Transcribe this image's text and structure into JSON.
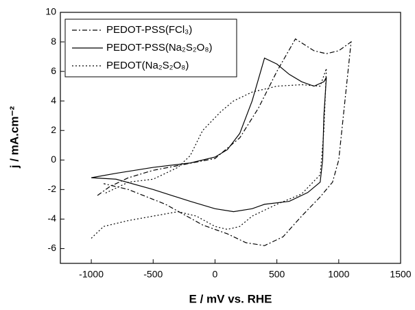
{
  "chart_data": {
    "type": "line",
    "x_label": "E / mV vs. RHE",
    "y_label": "j / mA.cm⁻²",
    "xlim": [
      -1250,
      1500
    ],
    "xticks": [
      -1000,
      -500,
      0,
      500,
      1000,
      1500
    ],
    "ylim": [
      -7,
      10
    ],
    "yticks": [
      -6,
      -4,
      -2,
      0,
      2,
      4,
      6,
      8,
      10
    ],
    "legend": "upper left",
    "series": [
      {
        "name": "PEDOT-PSS(FCl₃)",
        "color": "#000000",
        "dash": "dashdot",
        "x": [
          -950,
          -850,
          -700,
          -500,
          -250,
          0,
          200,
          350,
          500,
          650,
          800,
          900,
          1000,
          1100,
          1050,
          1000,
          950,
          850,
          700,
          550,
          400,
          250,
          100,
          -100,
          -400,
          -700,
          -900
        ],
        "values": [
          -2.4,
          -1.8,
          -1.2,
          -0.7,
          -0.3,
          0.1,
          1.5,
          3.5,
          6.0,
          8.2,
          7.4,
          7.2,
          7.4,
          8.0,
          4.0,
          0.0,
          -1.5,
          -2.5,
          -3.8,
          -5.2,
          -5.8,
          -5.6,
          -5.0,
          -4.4,
          -3.0,
          -2.0,
          -1.6
        ]
      },
      {
        "name": "PEDOT-PSS(Na₂S₂O₈)",
        "color": "#000000",
        "dash": "solid",
        "x": [
          -1000,
          -800,
          -500,
          -200,
          0,
          100,
          200,
          300,
          400,
          500,
          600,
          700,
          800,
          880,
          900,
          880,
          870,
          850,
          750,
          600,
          400,
          300,
          150,
          0,
          -200,
          -500,
          -800,
          -1000
        ],
        "values": [
          -1.2,
          -0.9,
          -0.5,
          -0.2,
          0.2,
          0.7,
          1.8,
          4.0,
          6.9,
          6.5,
          5.8,
          5.3,
          5.0,
          5.3,
          5.6,
          3.0,
          0.0,
          -1.5,
          -2.2,
          -2.8,
          -3.0,
          -3.3,
          -3.5,
          -3.3,
          -2.8,
          -2.0,
          -1.3,
          -1.2
        ]
      },
      {
        "name": "PEDOT(Na₂S₂O₈)",
        "color": "#000000",
        "dash": "dotted",
        "x": [
          -1000,
          -900,
          -700,
          -500,
          -300,
          -150,
          0,
          100,
          200,
          300,
          500,
          700,
          850,
          880,
          900,
          850,
          700,
          500,
          300,
          150,
          50,
          -100,
          -200,
          -300,
          -500,
          -700,
          -900
        ],
        "values": [
          -5.3,
          -4.5,
          -4.1,
          -3.8,
          -3.5,
          -3.8,
          -4.5,
          -4.7,
          -4.5,
          -3.8,
          -3.0,
          -2.3,
          -1.0,
          2.0,
          6.2,
          5.0,
          5.1,
          5.0,
          4.6,
          4.0,
          3.3,
          2.0,
          0.3,
          -0.5,
          -1.3,
          -1.5,
          -2.3
        ]
      }
    ]
  }
}
